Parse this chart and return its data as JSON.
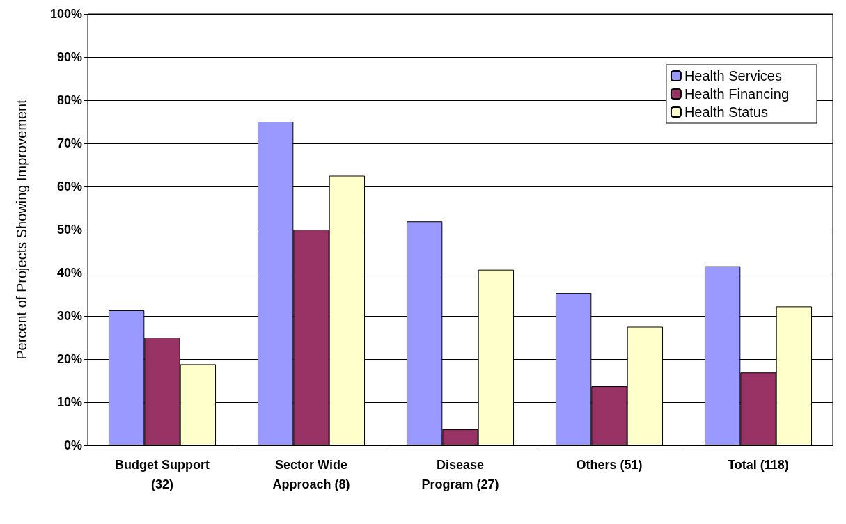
{
  "chart_data": {
    "type": "bar",
    "ylabel": "Percent of Projects Showing Improvement",
    "categories": [
      "Budget Support\n(32)",
      "Sector Wide\nApproach (8)",
      "Disease\nProgram (27)",
      "Others (51)",
      "Total (118)"
    ],
    "series": [
      {
        "name": "Health Services",
        "color": "#9999ff",
        "values": [
          31.3,
          75,
          51.9,
          35.3,
          41.5
        ]
      },
      {
        "name": "Health Financing",
        "color": "#993366",
        "values": [
          25,
          50,
          3.7,
          13.7,
          16.9
        ]
      },
      {
        "name": "Health Status",
        "color": "#ffffcc",
        "values": [
          18.8,
          62.5,
          40.7,
          27.5,
          32.2
        ]
      }
    ],
    "ylim": [
      0,
      100
    ],
    "yticks": [
      {
        "value": 0,
        "label": "0%"
      },
      {
        "value": 10,
        "label": "10%"
      },
      {
        "value": 20,
        "label": "20%"
      },
      {
        "value": 30,
        "label": "30%"
      },
      {
        "value": 40,
        "label": "40%"
      },
      {
        "value": 50,
        "label": "50%"
      },
      {
        "value": 60,
        "label": "60%"
      },
      {
        "value": 70,
        "label": "70%"
      },
      {
        "value": 80,
        "label": "80%"
      },
      {
        "value": 90,
        "label": "90%"
      },
      {
        "value": 100,
        "label": "100%"
      }
    ],
    "grid": "y",
    "legend": "top right"
  }
}
